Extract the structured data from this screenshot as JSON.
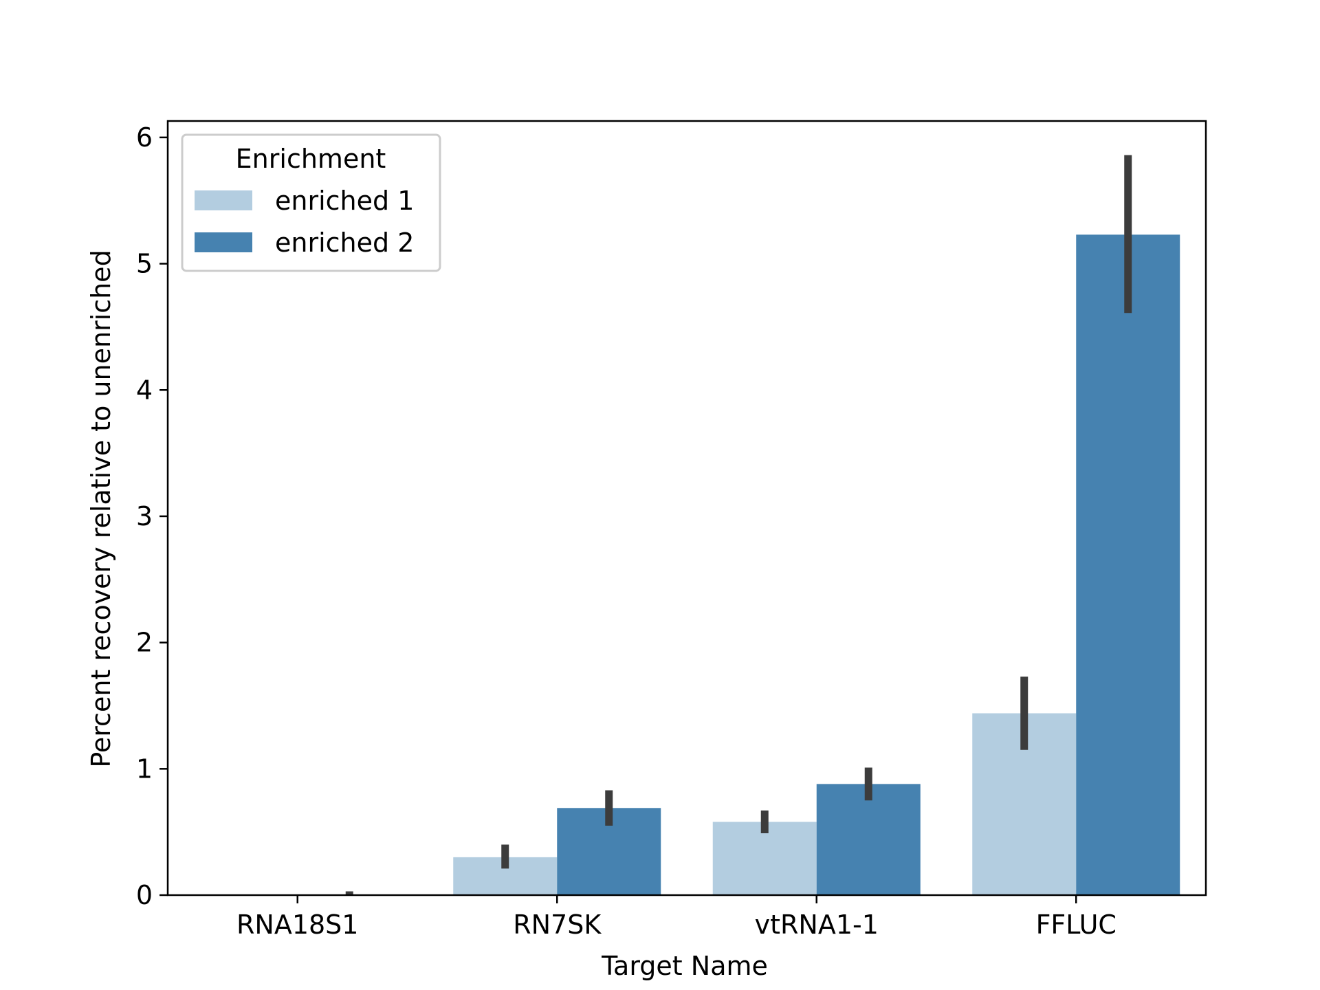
{
  "chart_data": {
    "type": "bar",
    "categories": [
      "RNA18S1",
      "RN7SK",
      "vtRNA1-1",
      "FFLUC"
    ],
    "series": [
      {
        "name": "enriched 1",
        "values": [
          0.0,
          0.3,
          0.58,
          1.44
        ],
        "err_low": [
          0.0,
          0.21,
          0.49,
          1.15
        ],
        "err_high": [
          0.0,
          0.4,
          0.67,
          1.73
        ]
      },
      {
        "name": "enriched 2",
        "values": [
          0.0,
          0.69,
          0.88,
          5.23
        ],
        "err_low": [
          0.0,
          0.55,
          0.75,
          4.61
        ],
        "err_high": [
          0.03,
          0.83,
          1.01,
          5.86
        ]
      }
    ],
    "xlabel": "Target Name",
    "ylabel": "Percent recovery relative to unenriched",
    "ylim": [
      0,
      6.13
    ],
    "yticks": [
      "0",
      "1",
      "2",
      "3",
      "4",
      "5",
      "6"
    ],
    "legend": {
      "title": "Enrichment",
      "placement": "upper-left"
    },
    "grid": false,
    "colors": {
      "enriched 1": "#b3cde0",
      "enriched 2": "#4682b0",
      "errorbar": "#3c3c3c"
    }
  }
}
